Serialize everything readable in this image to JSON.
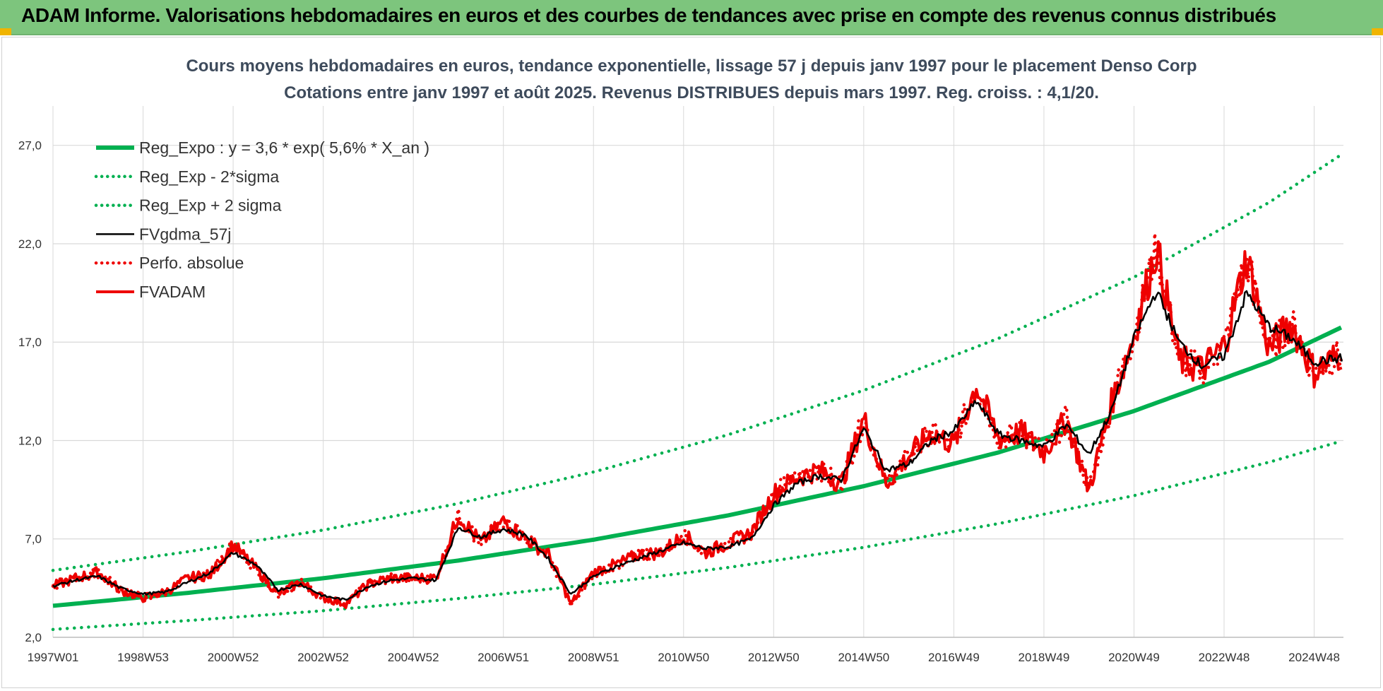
{
  "header": {
    "title": "ADAM Informe. Valorisations hebdomadaires en euros et des courbes de tendances avec prise en compte des revenus connus distribués"
  },
  "colors": {
    "banner": "#7dc57d",
    "reg_green": "#00b050",
    "black_series": "#000000",
    "red_series": "#ee0000",
    "grid": "#d9d9d9"
  },
  "chart_data": {
    "type": "line",
    "title": "Cours moyens hebdomadaires en euros, tendance exponentielle, lissage 57 j depuis janv 1997  pour le placement Denso Corp",
    "subtitle": "Cotations entre janv 1997 et août 2025.  Revenus DISTRIBUES depuis mars 1997. Reg. croiss. : 4,1/20.",
    "xlabel": "",
    "ylabel": "",
    "ylim": [
      2.0,
      29.0
    ],
    "xlim": [
      1997.0,
      2025.65
    ],
    "grid": true,
    "legend_position": "top-left",
    "y_ticks": [
      "2,0",
      "7,0",
      "12,0",
      "17,0",
      "22,0",
      "27,0"
    ],
    "y_tick_values": [
      2,
      7,
      12,
      17,
      22,
      27
    ],
    "x_ticks": [
      "1997W01",
      "1998W53",
      "2000W52",
      "2002W52",
      "2004W52",
      "2006W51",
      "2008W51",
      "2010W50",
      "2012W50",
      "2014W50",
      "2016W49",
      "2018W49",
      "2020W49",
      "2022W48",
      "2024W48"
    ],
    "x_tick_values": [
      1997.0,
      1999.0,
      2001.0,
      2003.0,
      2005.0,
      2007.0,
      2009.0,
      2011.0,
      2013.0,
      2015.0,
      2017.0,
      2019.0,
      2021.0,
      2023.0,
      2025.0
    ],
    "series": [
      {
        "name": "Reg_Expo : y = 3,6 * exp( 5,6% *  X_an )",
        "style": "solid-thick",
        "color": "#00b050",
        "x": [
          1997.0,
          2000.0,
          2003.0,
          2006.0,
          2009.0,
          2012.0,
          2015.0,
          2018.0,
          2021.0,
          2024.0,
          2025.65
        ],
        "y": [
          3.6,
          4.26,
          5.0,
          5.9,
          6.96,
          8.2,
          9.68,
          11.4,
          13.5,
          16.0,
          17.8
        ]
      },
      {
        "name": "Reg_Exp - 2*sigma",
        "style": "dotted",
        "color": "#00b050",
        "x": [
          1997.0,
          2000.0,
          2003.0,
          2006.0,
          2009.0,
          2012.0,
          2015.0,
          2018.0,
          2021.0,
          2024.0,
          2025.65
        ],
        "y": [
          2.4,
          2.85,
          3.35,
          3.97,
          4.69,
          5.55,
          6.57,
          7.78,
          9.2,
          10.9,
          12.0
        ]
      },
      {
        "name": "Reg_Exp + 2 sigma",
        "style": "dotted",
        "color": "#00b050",
        "x": [
          1997.0,
          2000.0,
          2003.0,
          2006.0,
          2009.0,
          2012.0,
          2015.0,
          2018.0,
          2021.0,
          2024.0,
          2025.65
        ],
        "y": [
          5.4,
          6.35,
          7.45,
          8.8,
          10.4,
          12.3,
          14.55,
          17.2,
          20.3,
          24.1,
          26.6
        ]
      },
      {
        "name": "FVgdma_57j",
        "style": "solid",
        "color": "#000000",
        "x": [
          1997.0,
          1997.5,
          1998.0,
          1998.5,
          1999.0,
          1999.5,
          2000.0,
          2000.5,
          2001.0,
          2001.5,
          2002.0,
          2002.5,
          2003.0,
          2003.5,
          2004.0,
          2004.5,
          2005.0,
          2005.5,
          2006.0,
          2006.5,
          2007.0,
          2007.5,
          2008.0,
          2008.5,
          2009.0,
          2009.5,
          2010.0,
          2010.5,
          2011.0,
          2011.5,
          2012.0,
          2012.5,
          2013.0,
          2013.5,
          2014.0,
          2014.5,
          2015.0,
          2015.5,
          2016.0,
          2016.5,
          2017.0,
          2017.5,
          2018.0,
          2018.5,
          2019.0,
          2019.5,
          2020.0,
          2020.5,
          2021.0,
          2021.5,
          2022.0,
          2022.5,
          2023.0,
          2023.5,
          2024.0,
          2024.5,
          2025.0,
          2025.65
        ],
        "y": [
          4.6,
          4.9,
          5.1,
          4.5,
          4.2,
          4.3,
          4.8,
          5.3,
          6.3,
          5.7,
          4.4,
          4.7,
          4.1,
          3.9,
          4.6,
          4.9,
          5.0,
          4.9,
          7.6,
          7.1,
          7.5,
          7.2,
          6.0,
          4.2,
          5.1,
          5.6,
          6.0,
          6.4,
          6.8,
          6.5,
          6.6,
          7.0,
          8.7,
          9.8,
          10.2,
          10.0,
          12.6,
          10.5,
          10.8,
          12.0,
          12.5,
          14.0,
          12.3,
          12.0,
          11.7,
          12.8,
          11.3,
          13.5,
          17.2,
          19.6,
          17.0,
          15.8,
          16.3,
          19.5,
          17.8,
          17.2,
          16.0,
          16.2
        ]
      },
      {
        "name": "Perfo. absolue",
        "style": "dotted",
        "color": "#ee0000",
        "x": [
          1997.0,
          1997.5,
          1998.0,
          1998.5,
          1999.0,
          1999.5,
          2000.0,
          2000.5,
          2001.0,
          2001.5,
          2002.0,
          2002.5,
          2003.0,
          2003.5,
          2004.0,
          2004.5,
          2005.0,
          2005.5,
          2006.0,
          2006.5,
          2007.0,
          2007.5,
          2008.0,
          2008.5,
          2009.0,
          2009.5,
          2010.0,
          2010.5,
          2011.0,
          2011.5,
          2012.0,
          2012.5,
          2013.0,
          2013.5,
          2014.0,
          2014.5,
          2015.0,
          2015.5,
          2016.0,
          2016.5,
          2017.0,
          2017.5,
          2018.0,
          2018.5,
          2019.0,
          2019.5,
          2020.0,
          2020.5,
          2021.0,
          2021.5,
          2022.0,
          2022.5,
          2023.0,
          2023.5,
          2024.0,
          2024.5,
          2025.0,
          2025.65
        ],
        "y": [
          4.6,
          5.0,
          5.3,
          4.4,
          4.0,
          4.3,
          5.0,
          5.2,
          6.7,
          5.5,
          4.2,
          4.8,
          4.0,
          3.7,
          4.7,
          5.0,
          5.0,
          5.0,
          8.2,
          6.8,
          7.9,
          7.0,
          6.2,
          3.7,
          5.3,
          5.7,
          6.2,
          6.3,
          7.2,
          6.3,
          6.8,
          7.3,
          9.3,
          10.1,
          10.5,
          9.8,
          13.1,
          9.8,
          11.2,
          12.4,
          11.8,
          14.8,
          12.1,
          12.4,
          11.4,
          13.1,
          9.5,
          13.9,
          17.4,
          21.8,
          16.1,
          15.6,
          16.8,
          21.3,
          16.7,
          17.9,
          15.5,
          16.5
        ]
      },
      {
        "name": "FVADAM",
        "style": "solid-thick",
        "color": "#ee0000",
        "x": [
          1997.0,
          1997.5,
          1998.0,
          1998.5,
          1999.0,
          1999.5,
          2000.0,
          2000.5,
          2001.0,
          2001.5,
          2002.0,
          2002.5,
          2003.0,
          2003.5,
          2004.0,
          2004.5,
          2005.0,
          2005.5,
          2006.0,
          2006.5,
          2007.0,
          2007.5,
          2008.0,
          2008.5,
          2009.0,
          2009.5,
          2010.0,
          2010.5,
          2011.0,
          2011.5,
          2012.0,
          2012.5,
          2013.0,
          2013.5,
          2014.0,
          2014.5,
          2015.0,
          2015.5,
          2016.0,
          2016.5,
          2017.0,
          2017.5,
          2018.0,
          2018.5,
          2019.0,
          2019.5,
          2020.0,
          2020.5,
          2021.0,
          2021.5,
          2022.0,
          2022.5,
          2023.0,
          2023.5,
          2024.0,
          2024.5,
          2025.0,
          2025.65
        ],
        "y": [
          4.6,
          5.0,
          5.3,
          4.4,
          4.0,
          4.3,
          5.0,
          5.2,
          6.7,
          5.5,
          4.2,
          4.8,
          4.0,
          3.7,
          4.7,
          5.0,
          5.0,
          5.0,
          8.2,
          6.8,
          7.9,
          7.0,
          6.2,
          3.7,
          5.3,
          5.7,
          6.2,
          6.3,
          7.2,
          6.3,
          6.8,
          7.3,
          9.3,
          10.1,
          10.5,
          9.8,
          13.1,
          9.8,
          11.2,
          12.4,
          11.8,
          14.8,
          12.1,
          12.4,
          11.4,
          13.1,
          9.5,
          13.9,
          17.4,
          21.8,
          16.1,
          15.6,
          16.8,
          21.3,
          16.7,
          17.9,
          15.5,
          16.5
        ]
      }
    ]
  }
}
